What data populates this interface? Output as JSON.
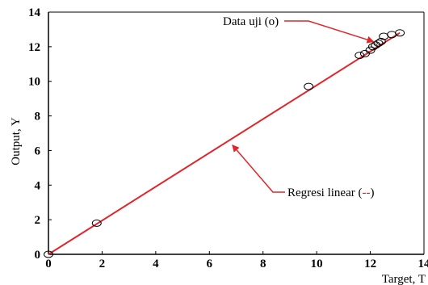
{
  "chart_data": {
    "type": "scatter",
    "xlabel": "Target, T",
    "ylabel": "Output, Y",
    "xlim": [
      0,
      14
    ],
    "ylim": [
      0,
      14
    ],
    "xticks": [
      "0",
      "2",
      "4",
      "6",
      "8",
      "10",
      "12",
      "14"
    ],
    "yticks": [
      "0",
      "2",
      "4",
      "6",
      "8",
      "10",
      "12",
      "14"
    ],
    "grid": false,
    "series": [
      {
        "name": "Data uji (o)",
        "marker": "circle-open",
        "points": [
          {
            "x": 0.0,
            "y": 0.0
          },
          {
            "x": 1.8,
            "y": 1.8
          },
          {
            "x": 9.7,
            "y": 9.7
          },
          {
            "x": 11.6,
            "y": 11.5
          },
          {
            "x": 11.8,
            "y": 11.6
          },
          {
            "x": 12.0,
            "y": 11.8
          },
          {
            "x": 12.1,
            "y": 12.0
          },
          {
            "x": 12.2,
            "y": 12.1
          },
          {
            "x": 12.3,
            "y": 12.2
          },
          {
            "x": 12.4,
            "y": 12.3
          },
          {
            "x": 12.5,
            "y": 12.6
          },
          {
            "x": 12.8,
            "y": 12.7
          },
          {
            "x": 13.1,
            "y": 12.8
          }
        ]
      },
      {
        "name": "Regresi linear (--)",
        "line": {
          "x": [
            0,
            13.1
          ],
          "y": [
            0,
            12.8
          ]
        },
        "color": "#e0262b"
      }
    ],
    "annotations": [
      {
        "text": "Data uji (o)",
        "points_to": {
          "x": 12.3,
          "y": 12.2
        },
        "arrow_color": "#e0262b"
      },
      {
        "prefix": "Regresi linear  (",
        "highlight": "--",
        "suffix": ")",
        "highlight_color": "#e0262b",
        "points_to": {
          "x": 6.8,
          "y": 6.5
        },
        "arrow_color": "#e0262b"
      }
    ]
  }
}
